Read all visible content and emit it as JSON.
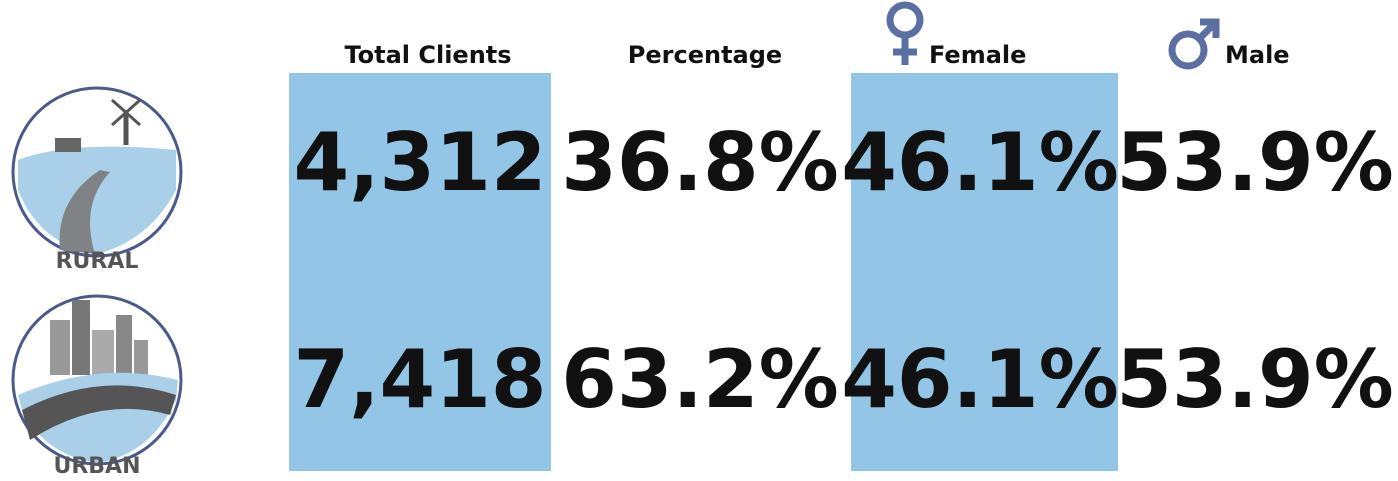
{
  "header": {
    "columns": [
      "Total Clients",
      "Percentage",
      "Female",
      "Male"
    ]
  },
  "rows": [
    {
      "label": "RURAL",
      "cells": [
        "4,312",
        "36.8%",
        "46.1%",
        "53.9%"
      ]
    },
    {
      "label": "URBAN",
      "cells": [
        "7,418",
        "63.2%",
        "46.1%",
        "53.9%"
      ]
    }
  ]
}
